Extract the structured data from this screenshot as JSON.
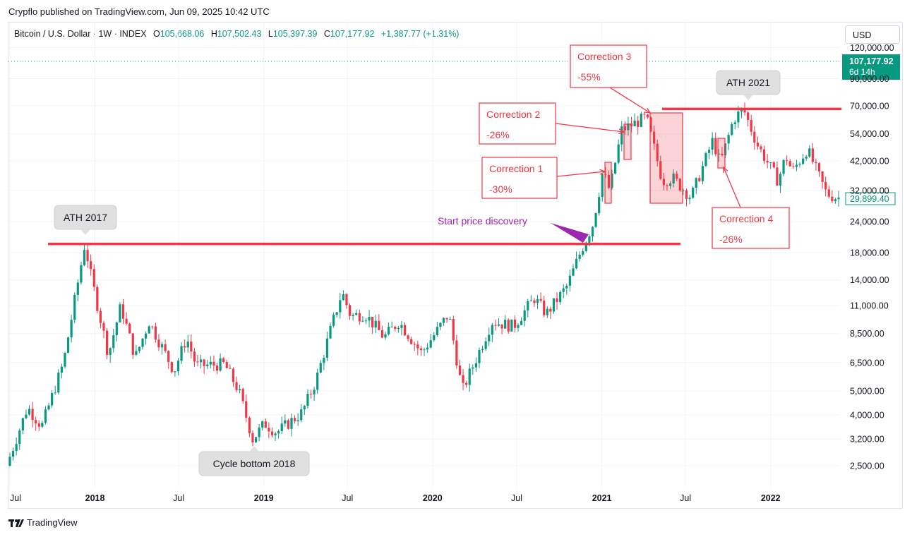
{
  "header": {
    "published": "Crypflo published on TradingView.com, Jun 09, 2025 10:42 UTC"
  },
  "legend": {
    "symbol": "Bitcoin / U.S. Dollar · 1W · INDEX",
    "o_label": "O",
    "o_value": "105,668.06",
    "h_label": "H",
    "h_value": "107,502.43",
    "l_label": "L",
    "l_value": "105,397.39",
    "c_label": "C",
    "c_value": "107,177.92",
    "change": "+1,387.77 (+1.31%)"
  },
  "currency_button": "USD",
  "footer": {
    "brand": "TradingView"
  },
  "price_tags": {
    "current_price": "107,177.92",
    "current_countdown": "6d 14h",
    "last_price": "29,899.40"
  },
  "colors": {
    "up": "#089981",
    "down": "#f23645",
    "accent_purple": "#9c27b0",
    "ath_line": "#f23645"
  },
  "chart_data": {
    "type": "candlestick",
    "scale": "log",
    "ylim": [
      2200,
      125000
    ],
    "y_ticks": [
      "120,000.00",
      "90,000.00",
      "70,000.00",
      "54,000.00",
      "42,000.00",
      "32,000.00",
      "24,000.00",
      "18,000.00",
      "14,000.00",
      "11,000.00",
      "8,500.00",
      "6,500.00",
      "5,000.00",
      "4,000.00",
      "3,200.00",
      "2,500.00"
    ],
    "x_ticks": [
      "Jul",
      "2018",
      "Jul",
      "2019",
      "Jul",
      "2020",
      "Jul",
      "2021",
      "Jul",
      "2022"
    ],
    "trend_points": [
      [
        "2017-07-01",
        2500
      ],
      [
        "2017-08-15",
        4300
      ],
      [
        "2017-09-15",
        3600
      ],
      [
        "2017-11-01",
        6500
      ],
      [
        "2017-12-17",
        19500
      ],
      [
        "2018-01-01",
        14000
      ],
      [
        "2018-02-06",
        7000
      ],
      [
        "2018-03-05",
        11000
      ],
      [
        "2018-04-05",
        6800
      ],
      [
        "2018-05-05",
        9500
      ],
      [
        "2018-06-28",
        6000
      ],
      [
        "2018-07-25",
        8200
      ],
      [
        "2018-08-15",
        6300
      ],
      [
        "2018-10-15",
        6400
      ],
      [
        "2018-11-15",
        5000
      ],
      [
        "2018-12-15",
        3200
      ],
      [
        "2019-01-10",
        3700
      ],
      [
        "2019-02-05",
        3400
      ],
      [
        "2019-04-01",
        4100
      ],
      [
        "2019-05-01",
        5500
      ],
      [
        "2019-05-30",
        8500
      ],
      [
        "2019-06-26",
        12500
      ],
      [
        "2019-07-15",
        10000
      ],
      [
        "2019-08-15",
        10200
      ],
      [
        "2019-09-25",
        8200
      ],
      [
        "2019-10-27",
        9500
      ],
      [
        "2019-12-15",
        7100
      ],
      [
        "2020-02-12",
        10200
      ],
      [
        "2020-03-12",
        5000
      ],
      [
        "2020-04-15",
        7000
      ],
      [
        "2020-05-15",
        9500
      ],
      [
        "2020-07-01",
        9100
      ],
      [
        "2020-08-15",
        11800
      ],
      [
        "2020-09-10",
        10200
      ],
      [
        "2020-10-25",
        13200
      ],
      [
        "2020-11-25",
        18500
      ],
      [
        "2020-12-20",
        23500
      ],
      [
        "2021-01-10",
        38000
      ],
      [
        "2021-01-25",
        32000
      ],
      [
        "2021-02-20",
        56000
      ],
      [
        "2021-04-14",
        63000
      ],
      [
        "2021-05-19",
        35000
      ],
      [
        "2021-06-10",
        36000
      ],
      [
        "2021-07-20",
        30000
      ],
      [
        "2021-09-05",
        51000
      ],
      [
        "2021-09-21",
        41000
      ],
      [
        "2021-10-20",
        62000
      ],
      [
        "2021-11-10",
        68000
      ],
      [
        "2021-12-10",
        49000
      ],
      [
        "2022-01-24",
        35000
      ],
      [
        "2022-02-10",
        44000
      ],
      [
        "2022-02-24",
        38000
      ],
      [
        "2022-03-28",
        47000
      ],
      [
        "2022-05-09",
        31000
      ],
      [
        "2022-05-31",
        29899
      ]
    ],
    "ath_2017": {
      "date": "2017-12-17",
      "price": 19500,
      "label": "ATH 2017"
    },
    "ath_2021": {
      "date": "2021-11-10",
      "price": 68000,
      "label": "ATH 2021"
    },
    "cycle_bottom": {
      "date": "2018-12-15",
      "price": 3200,
      "label": "Cycle bottom 2018"
    },
    "price_discovery": {
      "label": "Start price discovery"
    },
    "corrections": [
      {
        "label": "Correction 1",
        "pct": "-30%"
      },
      {
        "label": "Correction 2",
        "pct": "-26%"
      },
      {
        "label": "Correction 3",
        "pct": "-55%"
      },
      {
        "label": "Correction 4",
        "pct": "-26%"
      }
    ]
  }
}
